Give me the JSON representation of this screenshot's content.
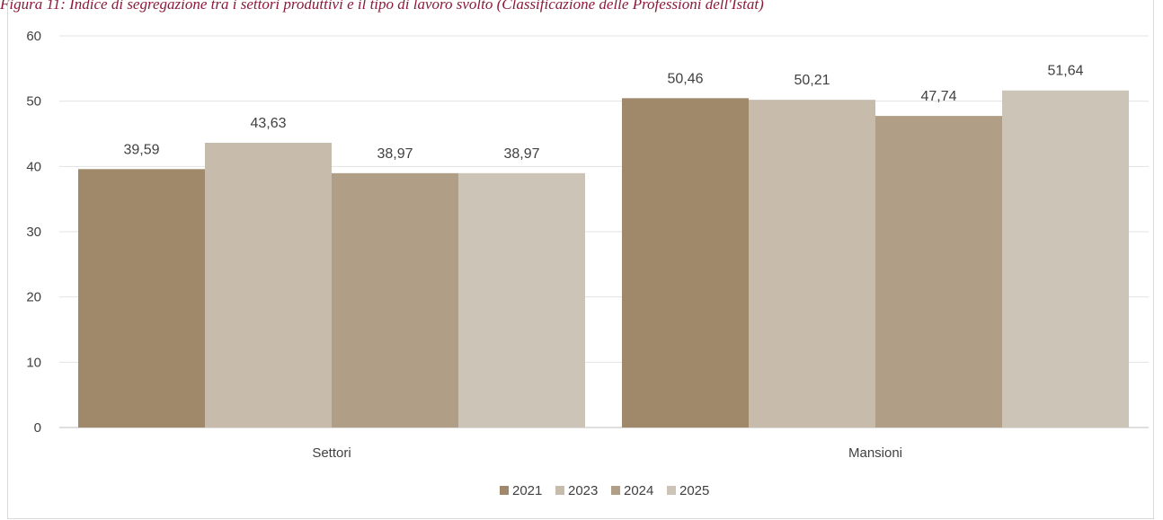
{
  "chart_data": {
    "type": "bar",
    "title": "Figura 11: Indice di segregazione tra i settori produttivi e il tipo di lavoro svolto (Classificazione delle Professioni dell'Istat)",
    "categories": [
      "Settori",
      "Mansioni"
    ],
    "series": [
      {
        "name": "2021",
        "values": [
          39.59,
          50.46
        ],
        "labels": [
          "39,59",
          "50,46"
        ],
        "color": "#a0896a"
      },
      {
        "name": "2023",
        "values": [
          43.63,
          50.21
        ],
        "labels": [
          "43,63",
          "50,21"
        ],
        "color": "#c7bcac"
      },
      {
        "name": "2024",
        "values": [
          38.97,
          47.74
        ],
        "labels": [
          "38,97",
          "47,74"
        ],
        "color": "#b09f86"
      },
      {
        "name": "2025",
        "values": [
          38.97,
          51.64
        ],
        "labels": [
          "38,97",
          "51,64"
        ],
        "color": "#cdc4b8"
      }
    ],
    "ylim": [
      0,
      60
    ],
    "yticks": [
      0,
      10,
      20,
      30,
      40,
      50,
      60
    ],
    "grid": true,
    "legend_position": "bottom"
  }
}
